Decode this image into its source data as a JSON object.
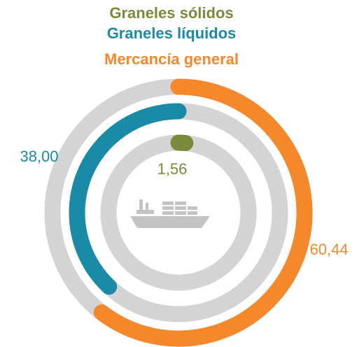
{
  "chart_data": {
    "type": "radial_bar",
    "series": [
      {
        "name": "Graneles sólidos",
        "color": "#7a8a3c",
        "values": [
          1.56
        ],
        "value_labels": [
          "1,56"
        ]
      },
      {
        "name": "Graneles líquidos",
        "color": "#1a8ba6",
        "values": [
          38.0
        ],
        "value_labels": [
          "38,00"
        ]
      },
      {
        "name": "Mercancía general",
        "color": "#f5882a",
        "values": [
          60.44
        ],
        "value_labels": [
          "60,44"
        ]
      }
    ],
    "ylim": [
      0,
      100
    ]
  }
}
